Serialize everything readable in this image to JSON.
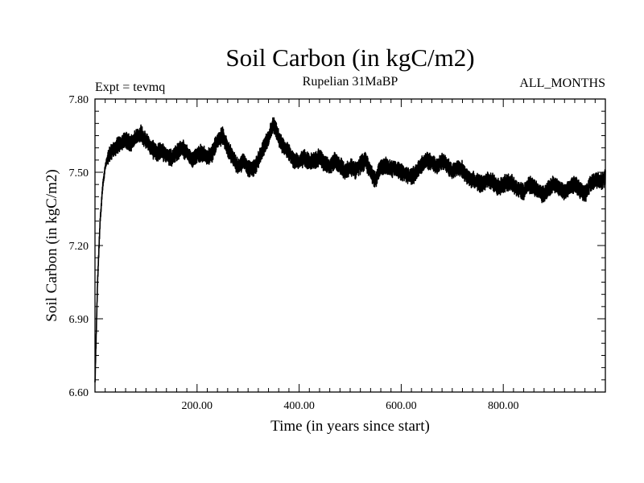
{
  "chart_data": {
    "type": "line",
    "title": "Soil Carbon (in kgC/m2)",
    "subtitle_left": "Expt = tevmq",
    "subtitle_center": "Rupelian  31MaBP",
    "subtitle_right": "ALL_MONTHS",
    "xlabel": "Time (in years since start)",
    "ylabel": "Soil Carbon (in kgC/m2)",
    "xlim": [
      0,
      1000
    ],
    "ylim": [
      6.6,
      7.8
    ],
    "x_ticks": [
      200,
      400,
      600,
      800
    ],
    "x_tick_labels": [
      "200.00",
      "400.00",
      "600.00",
      "800.00"
    ],
    "y_ticks": [
      6.6,
      6.9,
      7.2,
      7.5,
      7.8
    ],
    "y_tick_labels": [
      "6.60",
      "6.90",
      "7.20",
      "7.50",
      "7.80"
    ],
    "series": [
      {
        "name": "Soil Carbon",
        "color": "#000000",
        "band_half_width": 0.03,
        "x": [
          0,
          2,
          5,
          10,
          15,
          20,
          25,
          30,
          40,
          50,
          60,
          70,
          80,
          90,
          100,
          110,
          120,
          130,
          140,
          150,
          160,
          170,
          180,
          190,
          200,
          210,
          220,
          230,
          240,
          250,
          260,
          270,
          280,
          290,
          300,
          310,
          320,
          330,
          340,
          350,
          360,
          370,
          380,
          390,
          400,
          410,
          420,
          430,
          440,
          450,
          460,
          470,
          480,
          490,
          500,
          510,
          520,
          530,
          540,
          550,
          560,
          570,
          580,
          590,
          600,
          610,
          620,
          630,
          640,
          650,
          660,
          670,
          680,
          690,
          700,
          710,
          720,
          730,
          740,
          750,
          760,
          770,
          780,
          790,
          800,
          810,
          820,
          830,
          840,
          850,
          860,
          870,
          880,
          890,
          900,
          910,
          920,
          930,
          940,
          950,
          960,
          970,
          980,
          990,
          1000
        ],
        "values": [
          6.63,
          6.8,
          7.05,
          7.3,
          7.44,
          7.52,
          7.56,
          7.58,
          7.6,
          7.62,
          7.63,
          7.62,
          7.64,
          7.66,
          7.63,
          7.6,
          7.58,
          7.59,
          7.57,
          7.56,
          7.58,
          7.6,
          7.58,
          7.55,
          7.57,
          7.58,
          7.56,
          7.58,
          7.63,
          7.65,
          7.6,
          7.56,
          7.52,
          7.55,
          7.52,
          7.51,
          7.55,
          7.6,
          7.64,
          7.7,
          7.64,
          7.6,
          7.58,
          7.55,
          7.54,
          7.56,
          7.54,
          7.55,
          7.56,
          7.54,
          7.52,
          7.55,
          7.53,
          7.5,
          7.52,
          7.51,
          7.53,
          7.55,
          7.5,
          7.47,
          7.52,
          7.53,
          7.51,
          7.52,
          7.5,
          7.49,
          7.48,
          7.5,
          7.53,
          7.55,
          7.54,
          7.52,
          7.55,
          7.53,
          7.5,
          7.52,
          7.51,
          7.48,
          7.47,
          7.46,
          7.45,
          7.47,
          7.46,
          7.44,
          7.45,
          7.46,
          7.45,
          7.43,
          7.42,
          7.45,
          7.44,
          7.42,
          7.41,
          7.44,
          7.45,
          7.43,
          7.42,
          7.44,
          7.45,
          7.43,
          7.41,
          7.45,
          7.47,
          7.46,
          7.48
        ]
      }
    ]
  }
}
